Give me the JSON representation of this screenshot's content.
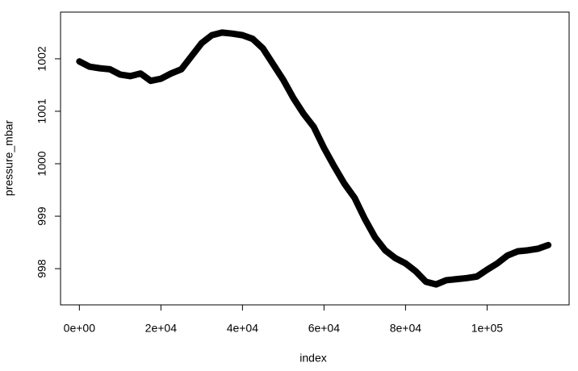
{
  "chart_data": {
    "type": "line",
    "x_label": "index",
    "y_label": "pressure_mbar",
    "x": [
      0,
      2500,
      5000,
      7500,
      10000,
      12500,
      15000,
      17500,
      20000,
      22500,
      25000,
      27500,
      30000,
      32500,
      35000,
      37500,
      40000,
      42500,
      45000,
      47500,
      50000,
      52500,
      55000,
      57500,
      60000,
      62500,
      65000,
      67500,
      70000,
      72500,
      75000,
      77500,
      80000,
      82500,
      85000,
      87500,
      90000,
      92500,
      95000,
      97500,
      100000,
      102500,
      105000,
      107500,
      110000,
      112500,
      115000
    ],
    "series": [
      {
        "name": "pressure_mbar",
        "color": "#000000",
        "values": [
          1001.95,
          1001.85,
          1001.82,
          1001.8,
          1001.7,
          1001.67,
          1001.72,
          1001.58,
          1001.62,
          1001.72,
          1001.8,
          1002.05,
          1002.3,
          1002.45,
          1002.5,
          1002.48,
          1002.45,
          1002.38,
          1002.2,
          1001.9,
          1001.6,
          1001.25,
          1000.95,
          1000.7,
          1000.3,
          999.95,
          999.62,
          999.35,
          998.95,
          998.6,
          998.35,
          998.2,
          998.1,
          997.95,
          997.75,
          997.7,
          997.78,
          997.8,
          997.82,
          997.85,
          997.98,
          998.1,
          998.25,
          998.33,
          998.35,
          998.38,
          998.45
        ]
      }
    ],
    "xlim": [
      -4620,
      120120
    ],
    "ylim": [
      997.31,
      1002.89
    ],
    "xticks": [
      {
        "value": 0,
        "label": "0e+00"
      },
      {
        "value": 20000,
        "label": "2e+04"
      },
      {
        "value": 40000,
        "label": "4e+04"
      },
      {
        "value": 60000,
        "label": "6e+04"
      },
      {
        "value": 80000,
        "label": "8e+04"
      },
      {
        "value": 100000,
        "label": "1e+05"
      }
    ],
    "yticks": [
      998,
      999,
      1000,
      1001,
      1002
    ]
  }
}
